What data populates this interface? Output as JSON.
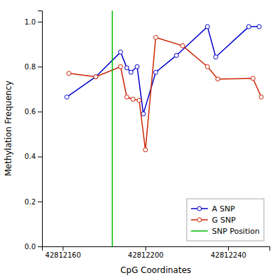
{
  "chart_data": {
    "type": "line",
    "xlabel": "CpG Coordinates",
    "ylabel": "Methylation Frequency",
    "xlim": [
      42812150,
      42812260
    ],
    "ylim": [
      0.0,
      1.05
    ],
    "xticks": [
      42812160,
      42812200,
      42812240
    ],
    "yticks": [
      {
        "value": 0.0,
        "label": "0.0"
      },
      0.2,
      0.4,
      0.6,
      0.8,
      {
        "value": 1.0,
        "label": "1.0"
      }
    ],
    "grid": false,
    "legend": "lower right",
    "series": [
      {
        "name": "A SNP",
        "color": "#0000CC",
        "marker": "circle",
        "line_style": "solid",
        "x": [
          42812162,
          42812176,
          42812188,
          42812191,
          42812193,
          42812196,
          42812199,
          42812205,
          42812215,
          42812230,
          42812234,
          42812250,
          42812255
        ],
        "values": [
          0.665,
          0.755,
          0.865,
          0.795,
          0.775,
          0.8,
          0.59,
          0.775,
          0.85,
          0.978,
          0.843,
          0.978,
          0.978
        ]
      },
      {
        "name": "G SNP",
        "color": "#CC2200",
        "marker": "circle",
        "line_style": "solid",
        "x": [
          42812163,
          42812176,
          42812188,
          42812191,
          42812194,
          42812197,
          42812200,
          42812205,
          42812218,
          42812230,
          42812235,
          42812252,
          42812256
        ],
        "values": [
          0.77,
          0.755,
          0.8,
          0.665,
          0.655,
          0.65,
          0.43,
          0.93,
          0.893,
          0.8,
          0.745,
          0.748,
          0.665
        ]
      },
      {
        "name": "SNP Position",
        "type": "vline",
        "color": "#00BB00",
        "line_style": "solid",
        "x": [
          42812184
        ]
      }
    ]
  }
}
